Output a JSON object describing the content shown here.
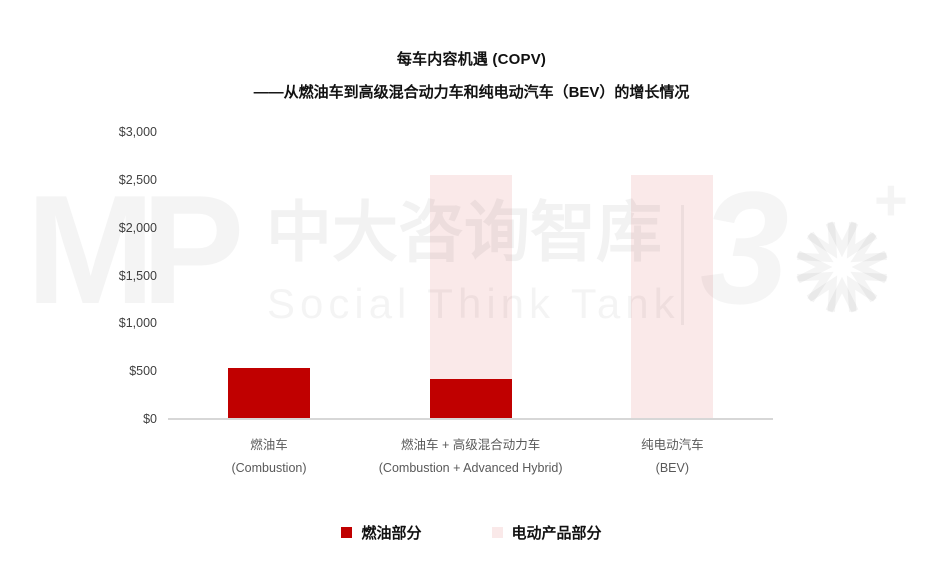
{
  "header": {
    "title": "每车内容机遇 (COPV)",
    "subtitle": "——从燃油车到高级混合动力车和纯电动汽车（BEV）的增长情况"
  },
  "watermark": {
    "logo": "MP",
    "brand": "中大咨询智库",
    "brand_en": "Social Think Tank",
    "anniversary_digit": "3",
    "anniversary_plus": "+"
  },
  "colors": {
    "fuel": "#C00000",
    "electric": "#FAE9E9",
    "axis_line": "#D7D7D7",
    "tick_text": "#404040",
    "category_text": "#595959"
  },
  "chart_data": {
    "type": "bar",
    "stacked": true,
    "title": "每车内容机遇 (COPV)",
    "subtitle": "——从燃油车到高级混合动力车和纯电动汽车（BEV）的增长情况",
    "categories": [
      {
        "zh": "燃油车",
        "en": "(Combustion)"
      },
      {
        "zh": "燃油车 + 高级混合动力车",
        "en": "(Combustion + Advanced Hybrid)"
      },
      {
        "zh": "纯电动汽车",
        "en": "(BEV)"
      }
    ],
    "series": [
      {
        "name": "燃油部分",
        "color": "#C00000",
        "values": [
          530,
          420,
          0
        ]
      },
      {
        "name": "电动产品部分",
        "color": "#FAE9E9",
        "values": [
          0,
          2130,
          2550
        ]
      }
    ],
    "totals": [
      530,
      2550,
      2550
    ],
    "ylim": [
      0,
      3000
    ],
    "yticks": [
      0,
      500,
      1000,
      1500,
      2000,
      2500,
      3000
    ],
    "ytick_labels": [
      "$0",
      "$500",
      "$1,000",
      "$1,500",
      "$2,000",
      "$2,500",
      "$3,000"
    ],
    "grid": false,
    "legend_position": "bottom"
  }
}
